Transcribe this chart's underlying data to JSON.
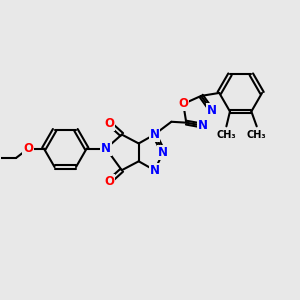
{
  "background_color": "#e8e8e8",
  "bond_color": "#000000",
  "bond_width": 1.5,
  "atom_colors": {
    "N": "#0000ff",
    "O": "#ff0000",
    "C": "#000000"
  },
  "font_size_atom": 8.5,
  "font_size_methyl": 7.0,
  "figsize": [
    3.0,
    3.0
  ],
  "dpi": 100
}
